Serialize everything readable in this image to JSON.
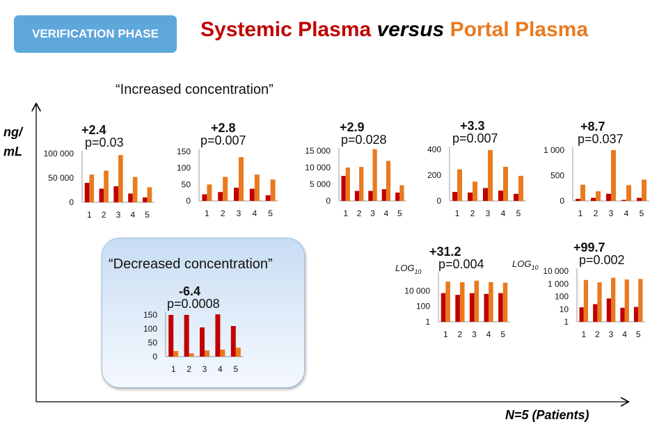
{
  "header": {
    "badge": "VERIFICATION PHASE",
    "title_part1": "Systemic Plasma ",
    "title_part2": "versus",
    "title_part3": " Portal Plasma"
  },
  "labels": {
    "increased": "“Increased concentration”",
    "decreased": "“Decreased concentration”",
    "y_unit": "ng/ mL",
    "x_unit": "N=5 (Patients)"
  },
  "colors": {
    "systemic": "#c00000",
    "portal": "#e97a1f",
    "badge": "#5ea7db"
  },
  "chart_data": [
    {
      "type": "bar",
      "fold": "+2.4",
      "p": "p=0.03",
      "categories": [
        "1",
        "2",
        "3",
        "4",
        "5"
      ],
      "ylim": [
        0,
        100000
      ],
      "yticks": [
        0,
        50000,
        100000
      ],
      "ytick_labels": [
        "0",
        "50 000",
        "100 000"
      ],
      "series": [
        {
          "values": [
            40000,
            28000,
            33000,
            18000,
            10000
          ]
        },
        {
          "values": [
            57000,
            65000,
            97000,
            52000,
            31000
          ]
        }
      ]
    },
    {
      "type": "bar",
      "fold": "+2.8",
      "p": "p=0.007",
      "categories": [
        "1",
        "2",
        "3",
        "4",
        "5"
      ],
      "ylim": [
        0,
        150
      ],
      "yticks": [
        0,
        50,
        100,
        150
      ],
      "ytick_labels": [
        "0",
        "50",
        "100",
        "150"
      ],
      "series": [
        {
          "values": [
            20,
            27,
            40,
            37,
            17
          ]
        },
        {
          "values": [
            50,
            73,
            133,
            80,
            65
          ]
        }
      ]
    },
    {
      "type": "bar",
      "fold": "+2.9",
      "p": "p=0.028",
      "categories": [
        "1",
        "2",
        "3",
        "4",
        "5"
      ],
      "ylim": [
        0,
        15000
      ],
      "yticks": [
        0,
        5000,
        10000,
        15000
      ],
      "ytick_labels": [
        "0",
        "5 000",
        "10 000",
        "15 000"
      ],
      "series": [
        {
          "values": [
            7500,
            3000,
            3000,
            3500,
            2500
          ]
        },
        {
          "values": [
            10000,
            10200,
            15500,
            12000,
            4700
          ]
        }
      ]
    },
    {
      "type": "bar",
      "fold": "+3.3",
      "p": "p=0.007",
      "categories": [
        "1",
        "2",
        "3",
        "4",
        "5"
      ],
      "ylim": [
        0,
        400
      ],
      "yticks": [
        0,
        200,
        400
      ],
      "ytick_labels": [
        "0",
        "200",
        "400"
      ],
      "series": [
        {
          "values": [
            70,
            65,
            100,
            80,
            55
          ]
        },
        {
          "values": [
            245,
            150,
            395,
            265,
            195
          ]
        }
      ]
    },
    {
      "type": "bar",
      "fold": "+8.7",
      "p": "p=0.037",
      "categories": [
        "1",
        "2",
        "3",
        "4",
        "5"
      ],
      "ylim": [
        0,
        1000
      ],
      "yticks": [
        0,
        500,
        1000
      ],
      "ytick_labels": [
        "0",
        "500",
        "1 000"
      ],
      "series": [
        {
          "values": [
            40,
            60,
            140,
            20,
            60
          ]
        },
        {
          "values": [
            320,
            190,
            1000,
            310,
            420
          ]
        }
      ]
    },
    {
      "type": "bar",
      "fold": "+31.2",
      "p": "p=0.004",
      "log_label": "LOG",
      "log_sub": "10",
      "scale": "log",
      "categories": [
        "1",
        "2",
        "3",
        "4",
        "5"
      ],
      "ylim": [
        1,
        1000000
      ],
      "yticks": [
        1,
        100,
        10000
      ],
      "ytick_labels": [
        "1",
        "100",
        "10 000"
      ],
      "series": [
        {
          "values": [
            5000,
            3000,
            5000,
            4000,
            5000
          ]
        },
        {
          "values": [
            150000,
            130000,
            200000,
            130000,
            110000
          ]
        }
      ]
    },
    {
      "type": "bar",
      "fold": "+99.7",
      "p": "p=0.002",
      "log_label": "LOG",
      "log_sub": "10",
      "scale": "log",
      "categories": [
        "1",
        "2",
        "3",
        "4",
        "5"
      ],
      "ylim": [
        1,
        10000
      ],
      "yticks": [
        1,
        10,
        100,
        1000,
        10000
      ],
      "ytick_labels": [
        "1",
        "10",
        "100",
        "1 000",
        "10 000"
      ],
      "series": [
        {
          "values": [
            14,
            25,
            70,
            13,
            15
          ]
        },
        {
          "values": [
            2000,
            1300,
            3000,
            2200,
            2400
          ]
        }
      ]
    },
    {
      "type": "bar",
      "fold": "-6.4",
      "p": "p=0.0008",
      "categories": [
        "1",
        "2",
        "3",
        "4",
        "5"
      ],
      "ylim": [
        0,
        150
      ],
      "yticks": [
        0,
        50,
        100,
        150
      ],
      "ytick_labels": [
        "0",
        "50",
        "100",
        "150"
      ],
      "series": [
        {
          "values": [
            150,
            150,
            105,
            152,
            110
          ]
        },
        {
          "values": [
            20,
            12,
            22,
            25,
            32
          ]
        }
      ]
    }
  ]
}
